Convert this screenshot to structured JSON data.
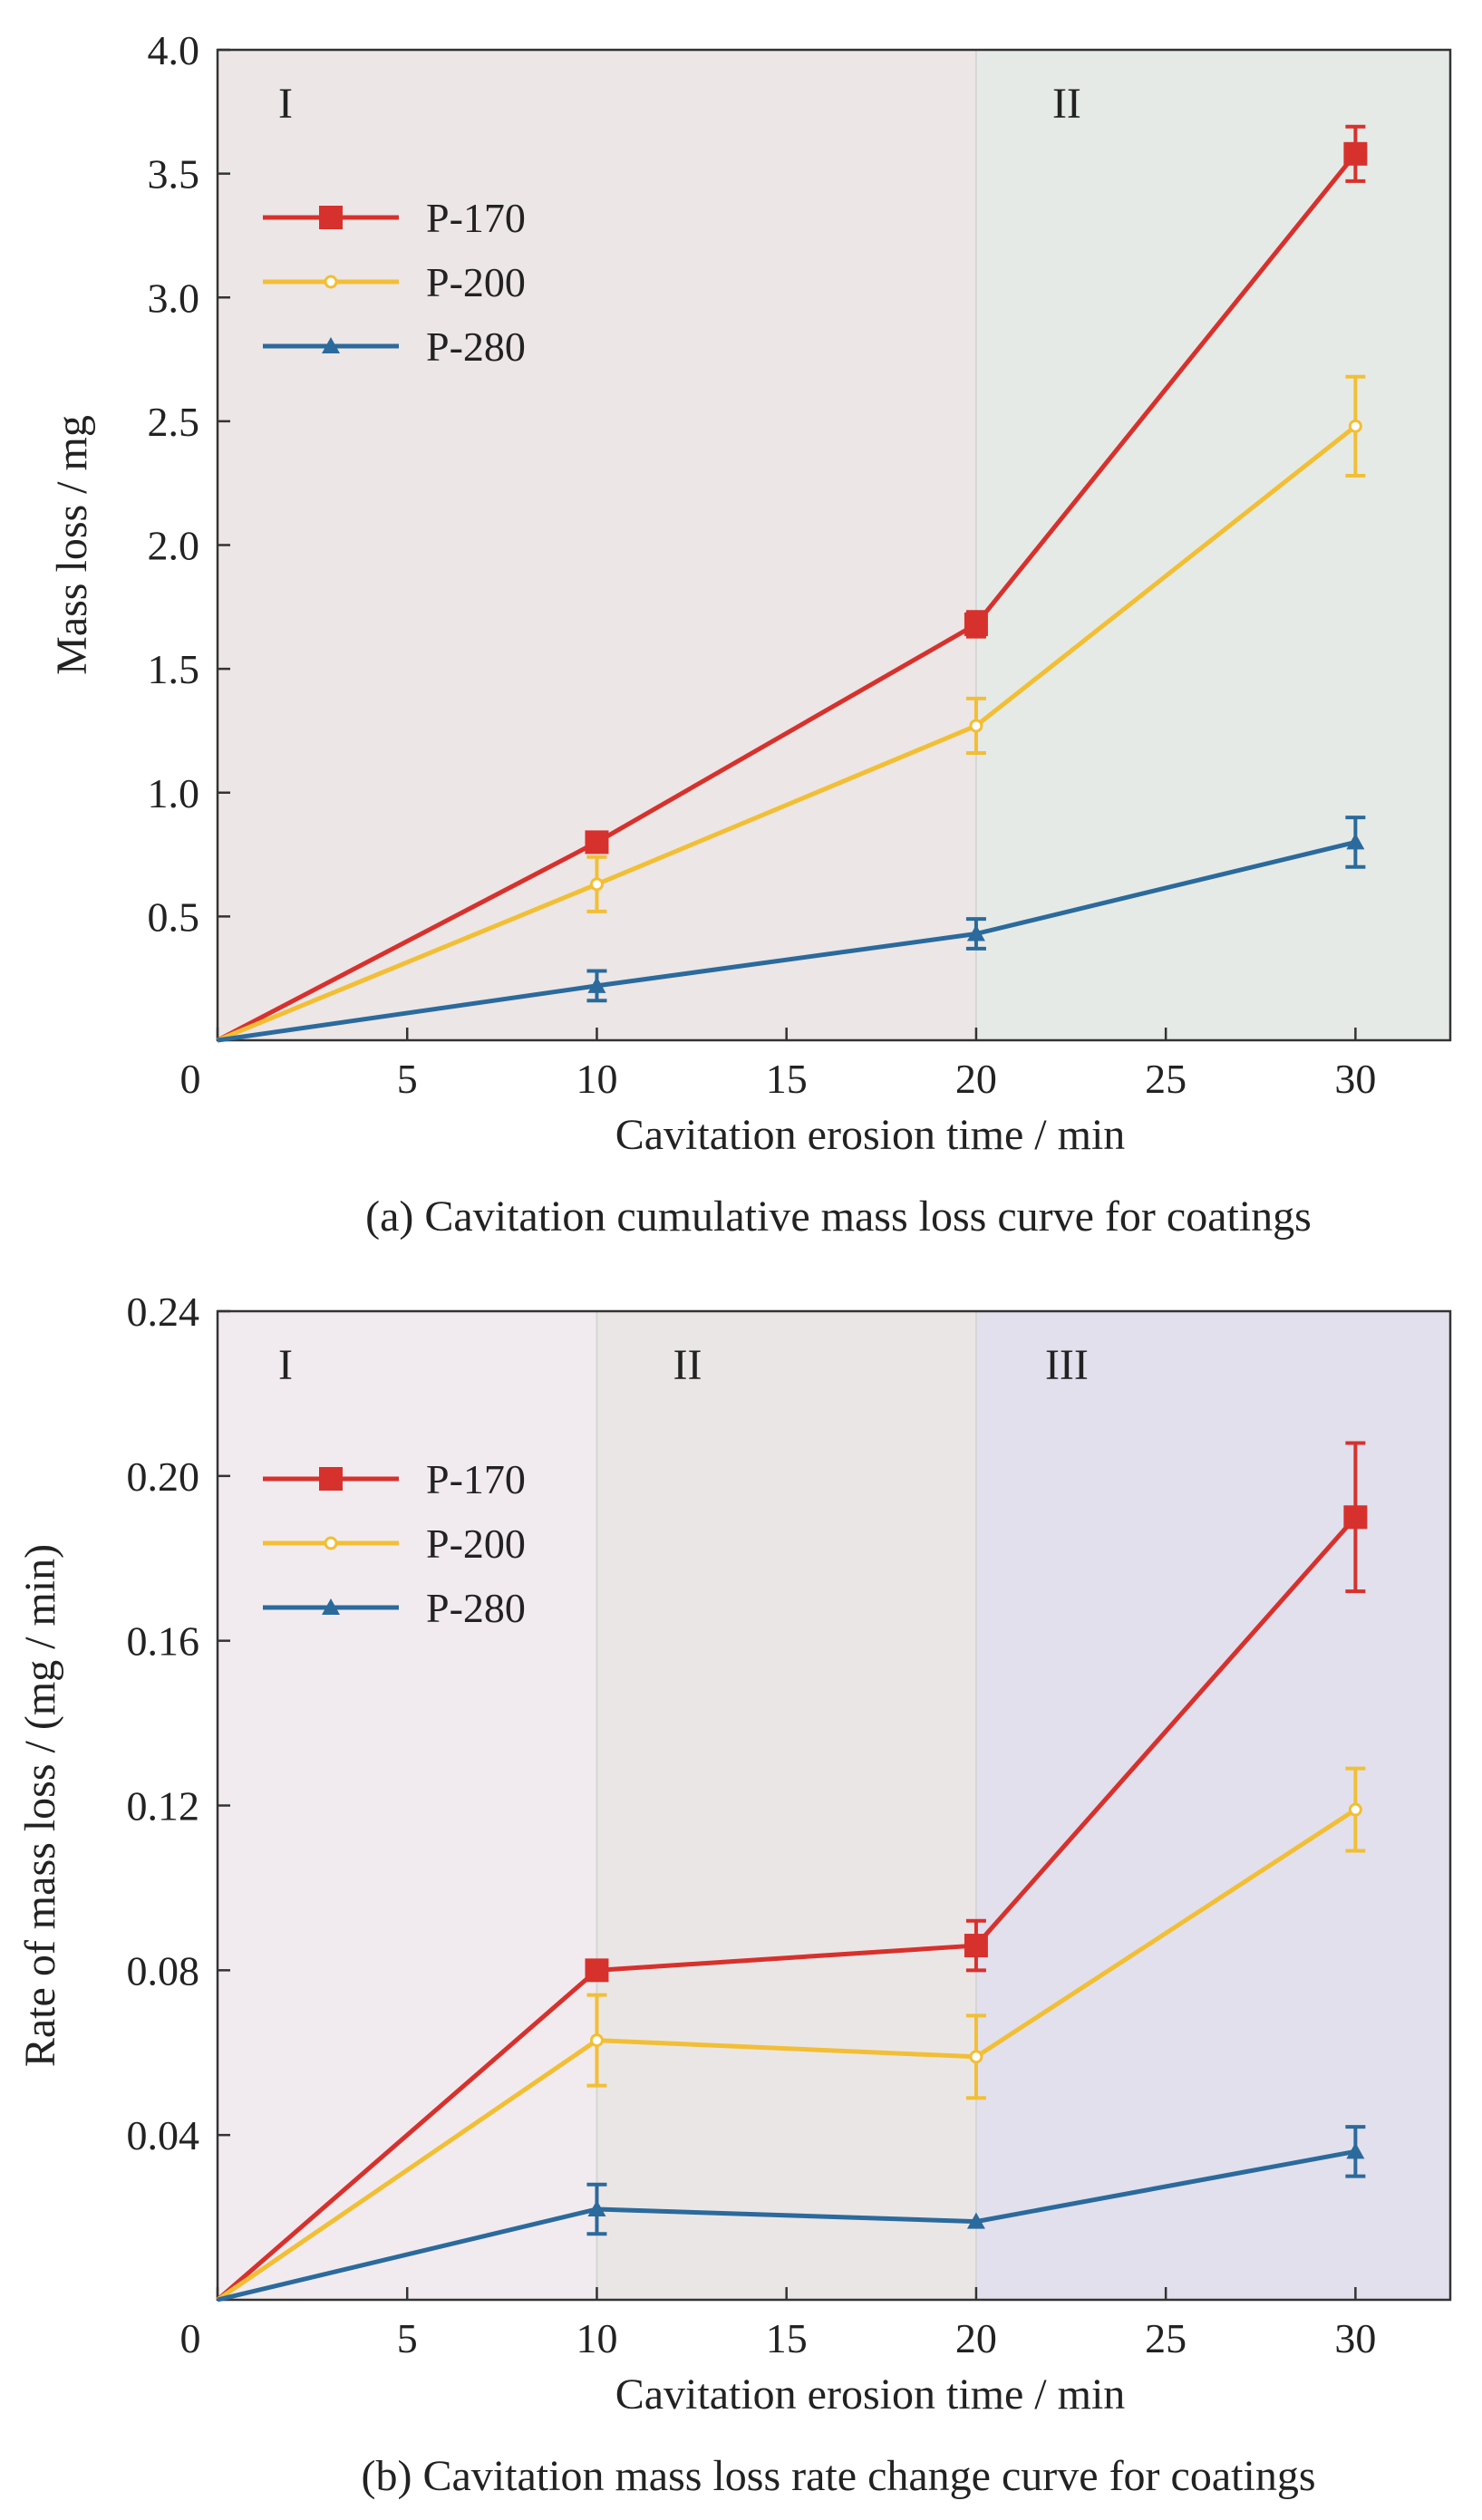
{
  "chart_data": [
    {
      "type": "line",
      "caption": "(a) Cavitation cumulative mass loss curve for coatings",
      "xlabel": "Cavitation erosion time / min",
      "ylabel": "Mass loss / mg",
      "x": [
        0,
        10,
        20,
        30
      ],
      "xlim": [
        0,
        32.5
      ],
      "ylim": [
        0,
        4.0
      ],
      "x_ticks": [
        "0",
        "5",
        "10",
        "15",
        "20",
        "25",
        "30"
      ],
      "y_ticks": [
        "0.5",
        "1.0",
        "1.5",
        "2.0",
        "2.5",
        "3.0",
        "3.5",
        "4.0"
      ],
      "x_tick_values": [
        0,
        5,
        10,
        15,
        20,
        25,
        30
      ],
      "y_tick_values": [
        0.5,
        1.0,
        1.5,
        2.0,
        2.5,
        3.0,
        3.5,
        4.0
      ],
      "regions": [
        {
          "label": "I",
          "from": 0,
          "to": 20,
          "color": "#ece6e6"
        },
        {
          "label": "II",
          "from": 20,
          "to": 32.5,
          "color": "#e6eae6"
        }
      ],
      "legend_position": "upper-left",
      "series": [
        {
          "name": "P-170",
          "color": "#d7312d",
          "marker": "square",
          "values": [
            0,
            0.8,
            1.68,
            3.58
          ],
          "errors": [
            0,
            0.0,
            0.05,
            0.11
          ]
        },
        {
          "name": "P-200",
          "color": "#f2bf34",
          "marker": "circle",
          "values": [
            0,
            0.63,
            1.27,
            2.48
          ],
          "errors": [
            0,
            0.11,
            0.11,
            0.2
          ]
        },
        {
          "name": "P-280",
          "color": "#2b6a9c",
          "marker": "triangle",
          "values": [
            0,
            0.22,
            0.43,
            0.8
          ],
          "errors": [
            0,
            0.06,
            0.06,
            0.1
          ]
        }
      ]
    },
    {
      "type": "line",
      "caption": "(b) Cavitation mass loss rate change curve for coatings",
      "xlabel": "Cavitation erosion time / min",
      "ylabel": "Rate of mass loss / (mg / min)",
      "x": [
        0,
        10,
        20,
        30
      ],
      "xlim": [
        0,
        32.5
      ],
      "ylim": [
        0,
        0.24
      ],
      "x_ticks": [
        "0",
        "5",
        "10",
        "15",
        "20",
        "25",
        "30"
      ],
      "y_ticks": [
        "0.04",
        "0.08",
        "0.12",
        "0.16",
        "0.20",
        "0.24"
      ],
      "x_tick_values": [
        0,
        5,
        10,
        15,
        20,
        25,
        30
      ],
      "y_tick_values": [
        0.04,
        0.08,
        0.12,
        0.16,
        0.2,
        0.24
      ],
      "regions": [
        {
          "label": "I",
          "from": 0,
          "to": 10,
          "color": "#f1ebef"
        },
        {
          "label": "II",
          "from": 10,
          "to": 20,
          "color": "#ebe6e6"
        },
        {
          "label": "III",
          "from": 20,
          "to": 32.5,
          "color": "#e2e0ec"
        }
      ],
      "legend_position": "upper-left",
      "series": [
        {
          "name": "P-170",
          "color": "#d7312d",
          "marker": "square",
          "values": [
            0,
            0.08,
            0.086,
            0.19
          ],
          "errors": [
            0,
            0.0,
            0.006,
            0.018
          ]
        },
        {
          "name": "P-200",
          "color": "#f2bf34",
          "marker": "circle",
          "values": [
            0,
            0.063,
            0.059,
            0.119
          ],
          "errors": [
            0,
            0.011,
            0.01,
            0.01
          ]
        },
        {
          "name": "P-280",
          "color": "#2b6a9c",
          "marker": "triangle",
          "values": [
            0,
            0.022,
            0.019,
            0.036
          ],
          "errors": [
            0,
            0.006,
            0.0,
            0.006
          ]
        }
      ]
    }
  ]
}
